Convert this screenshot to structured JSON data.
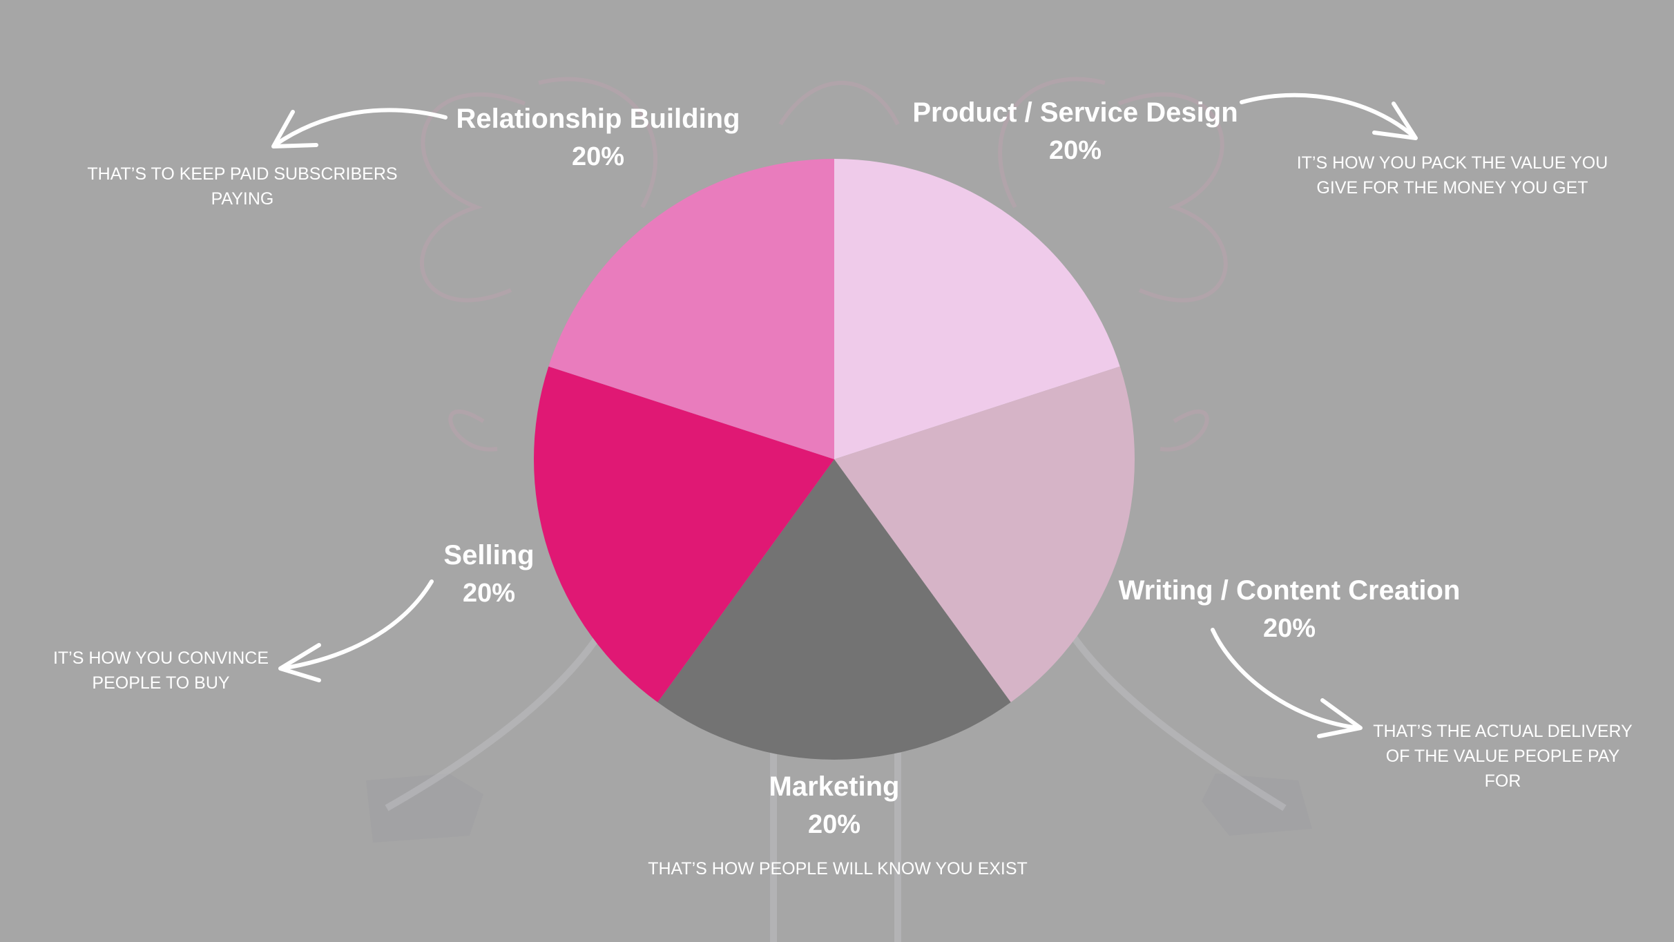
{
  "chart_data": {
    "type": "pie",
    "categories": [
      "Product / Service Design",
      "Writing / Content Creation",
      "Marketing",
      "Selling",
      "Relationship Building"
    ],
    "values": [
      20,
      20,
      20,
      20,
      20
    ],
    "value_labels": [
      "20%",
      "20%",
      "20%",
      "20%",
      "20%"
    ],
    "colors": [
      "#efcbea",
      "#d6b4c7",
      "#737373",
      "#e01874",
      "#e97cbd"
    ],
    "descriptions": [
      [
        "IT’S HOW YOU PACK THE VALUE YOU",
        "GIVE FOR THE MONEY YOU GET"
      ],
      [
        "THAT’S THE ACTUAL DELIVERY",
        "OF THE VALUE PEOPLE PAY",
        "FOR"
      ],
      [
        "THAT’S HOW PEOPLE WILL KNOW YOU EXIST"
      ],
      [
        "IT’S HOW YOU CONVINCE",
        "PEOPLE TO BUY"
      ],
      [
        "THAT’S TO KEEP PAID SUBSCRIBERS",
        "PAYING"
      ]
    ],
    "title": "",
    "legend": "none",
    "label_color": "#ffffff",
    "background_color": "#a6a6a6"
  }
}
